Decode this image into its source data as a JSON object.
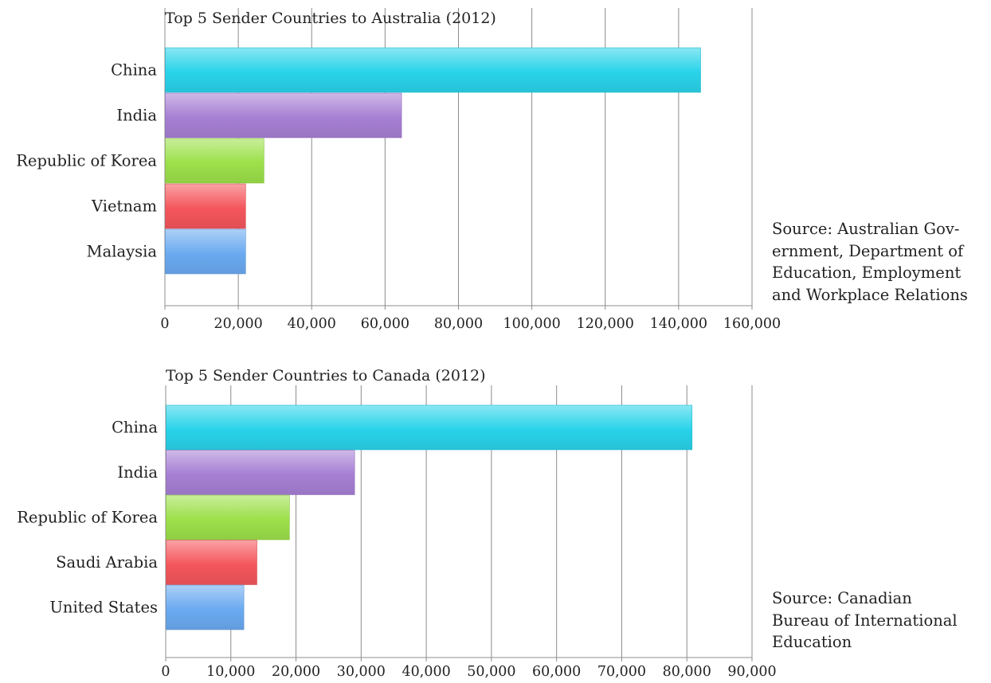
{
  "chart_data": [
    {
      "type": "bar",
      "orientation": "horizontal",
      "title": "Top 5 Sender Countries to Australia (2012)",
      "categories": [
        "China",
        "India",
        "Republic of Korea",
        "Vietnam",
        "Malaysia"
      ],
      "values": [
        146000,
        64500,
        27000,
        22000,
        22000
      ],
      "xlim": [
        0,
        160000
      ],
      "xticks": [
        0,
        20000,
        40000,
        60000,
        80000,
        100000,
        120000,
        140000,
        160000
      ],
      "xtick_labels": [
        "0",
        "20,000",
        "40,000",
        "60,000",
        "80,000",
        "100,000",
        "120,000",
        "140,000",
        "160,000"
      ],
      "grid": "vertical",
      "colors": [
        "#29d3ea",
        "#a77fd4",
        "#9ce04a",
        "#f4565c",
        "#6aaaf0"
      ],
      "source": "Source: Australian Government, Department of Education, Employment and Workplace Relations",
      "source_lines": [
        "Source: Australian Gov-",
        "ernment, Department of",
        "Education, Employment",
        "and Workplace Relations"
      ]
    },
    {
      "type": "bar",
      "orientation": "horizontal",
      "title": "Top 5 Sender Countries to Canada (2012)",
      "categories": [
        "China",
        "India",
        "Republic of Korea",
        "Saudi Arabia",
        "United States"
      ],
      "values": [
        80800,
        29000,
        19000,
        14000,
        12000
      ],
      "xlim": [
        0,
        90000
      ],
      "xticks": [
        0,
        10000,
        20000,
        30000,
        40000,
        50000,
        60000,
        70000,
        80000,
        90000
      ],
      "xtick_labels": [
        "0",
        "10,000",
        "20,000",
        "30,000",
        "40,000",
        "50,000",
        "60,000",
        "70,000",
        "80,000",
        "90,000"
      ],
      "grid": "vertical",
      "colors": [
        "#29d3ea",
        "#a77fd4",
        "#9ce04a",
        "#f4565c",
        "#6aaaf0"
      ],
      "source": "Source: Canadian Bureau of International Education",
      "source_lines": [
        "Source: Canadian",
        "Bureau of International",
        "Education"
      ]
    }
  ]
}
